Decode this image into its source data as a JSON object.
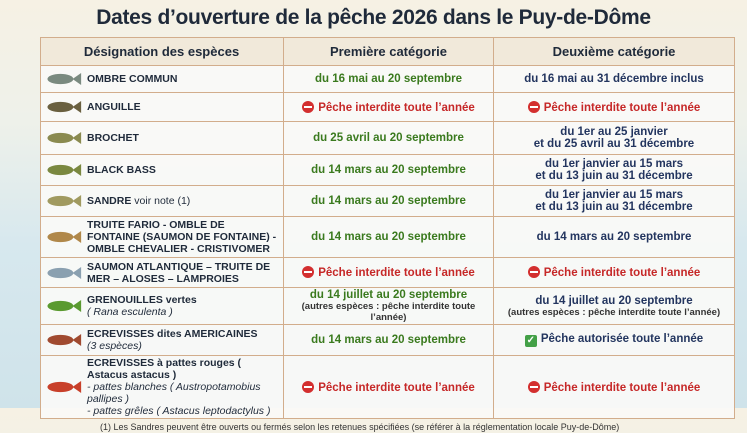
{
  "title": "Dates d’ouverture de la pêche 2026 dans le Puy-de-Dôme",
  "headers": [
    "Désignation des espèces",
    "Première catégorie",
    "Deuxième catégorie"
  ],
  "rows": [
    {
      "species": "OMBRE COMMUN",
      "icon": "fish-icon",
      "color": "#7a8a80",
      "c1": {
        "text": "du 16 mai au 20 septembre",
        "status": "open"
      },
      "c2": {
        "text": "du 16 mai au 31 décembre inclus",
        "status": "open"
      }
    },
    {
      "species": "ANGUILLE",
      "icon": "eel-icon",
      "color": "#6a6040",
      "c1": {
        "text": "Pêche interdite toute l’année",
        "status": "forbidden"
      },
      "c2": {
        "text": "Pêche interdite toute l’année",
        "status": "forbidden"
      }
    },
    {
      "species": "BROCHET",
      "icon": "pike-icon",
      "color": "#8a8a50",
      "c1": {
        "text": "du 25 avril au 20 septembre",
        "status": "open"
      },
      "c2": {
        "text": "du 1er au 25 janvier",
        "text2": "et du 25 avril au 31 décembre",
        "status": "open"
      }
    },
    {
      "species": "BLACK BASS",
      "icon": "bass-icon",
      "color": "#7a8840",
      "c1": {
        "text": "du 14 mars au 20 septembre",
        "status": "open"
      },
      "c2": {
        "text": "du 1er janvier au 15 mars",
        "text2": "et du 13 juin au 31 décembre",
        "status": "open"
      }
    },
    {
      "species": "SANDRE",
      "species_suffix": "voir note (1)",
      "icon": "zander-icon",
      "color": "#a09a60",
      "c1": {
        "text": "du 14 mars au 20 septembre",
        "status": "open"
      },
      "c2": {
        "text": "du 1er janvier au 15 mars",
        "text2": "et du 13 juin au 31 décembre",
        "status": "open"
      }
    },
    {
      "species": "TRUITE FARIO - OMBLE DE FONTAINE (SAUMON DE FONTAINE) - OMBLE CHEVALIER - CRISTIVOMER",
      "icon": "trout-icon",
      "color": "#b0884a",
      "c1": {
        "text": "du 14 mars au 20 septembre",
        "status": "open"
      },
      "c2": {
        "text": "du 14 mars au 20 septembre",
        "status": "open"
      }
    },
    {
      "species": "SAUMON ATLANTIQUE – TRUITE DE MER – ALOSES – LAMPROIES",
      "icon": "salmon-icon",
      "color": "#8aa0b0",
      "c1": {
        "text": "Pêche interdite toute l’année",
        "status": "forbidden"
      },
      "c2": {
        "text": "Pêche interdite toute l’année",
        "status": "forbidden"
      }
    },
    {
      "species": "GRENOUILLES vertes",
      "latin": "( Rana esculenta )",
      "icon": "frog-icon",
      "color": "#5a9a30",
      "c1": {
        "text": "du 14 juillet au 20 septembre",
        "note": "(autres espèces : pêche interdite toute l’année)",
        "status": "open"
      },
      "c2": {
        "text": "du 14 juillet au 20 septembre",
        "note": "(autres espèces : pêche interdite toute l’année)",
        "status": "open"
      }
    },
    {
      "species": "ECREVISSES dites AMERICAINES",
      "latin": "(3 espèces)",
      "icon": "crayfish-icon",
      "color": "#a04a30",
      "c1": {
        "text": "du 14 mars au 20 septembre",
        "status": "open"
      },
      "c2": {
        "text": "Pêche autorisée toute l’année",
        "status": "allowed"
      }
    },
    {
      "species": "ECREVISSES à pattes rouges ( Astacus astacus )",
      "latin": "- pattes blanches ( Austropotamobius pallipes )",
      "latin2": "- pattes grêles ( Astacus leptodactylus )",
      "icon": "crayfish-icon",
      "color": "#c8402a",
      "c1": {
        "text": "Pêche interdite toute l’année",
        "status": "forbidden"
      },
      "c2": {
        "text": "Pêche interdite toute l’année",
        "status": "forbidden"
      }
    }
  ],
  "footnote": "(1) Les Sandres peuvent être ouverts ou fermés selon les retenues spécifiées (se référer à la réglementation locale Puy-de-Dôme)"
}
